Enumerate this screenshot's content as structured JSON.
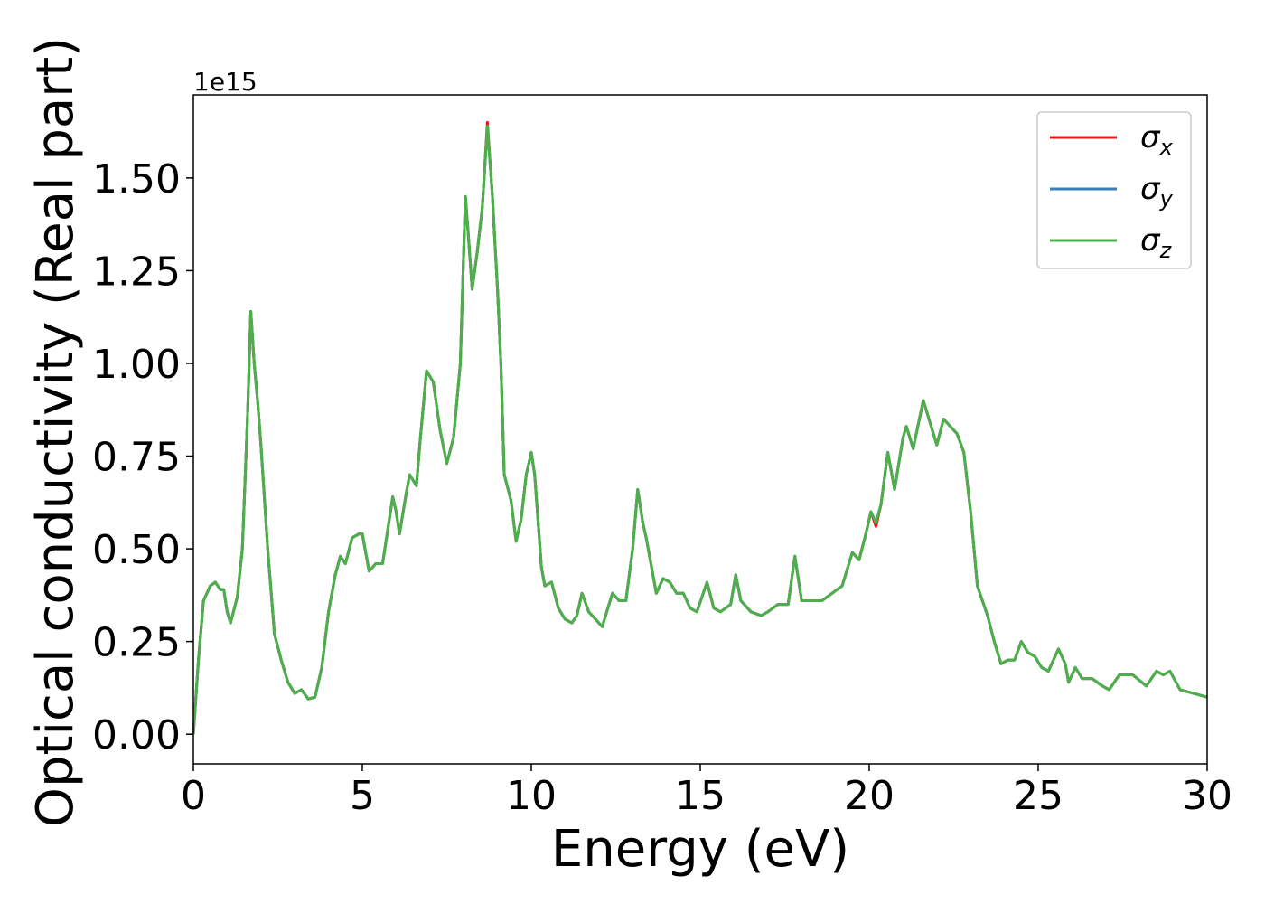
{
  "chart_data": {
    "type": "line",
    "xlabel": "Energy (eV)",
    "ylabel": "Optical conductivity (Real part)",
    "y_offset_label": "1e15",
    "xlim": [
      0,
      30
    ],
    "ylim": [
      -0.08,
      1.724
    ],
    "xticks": [
      0,
      5,
      10,
      15,
      20,
      25,
      30
    ],
    "yticks": [
      {
        "value": 0,
        "label": "0.00"
      },
      {
        "value": 0.25,
        "label": "0.25"
      },
      {
        "value": 0.5,
        "label": "0.50"
      },
      {
        "value": 0.75,
        "label": "0.75"
      },
      {
        "value": 1.0,
        "label": "1.00"
      },
      {
        "value": 1.25,
        "label": "1.25"
      },
      {
        "value": 1.5,
        "label": "1.50"
      }
    ],
    "legend": "upper right",
    "x": [
      0,
      0.15,
      0.3,
      0.5,
      0.65,
      0.8,
      0.9,
      1.0,
      1.1,
      1.3,
      1.45,
      1.6,
      1.7,
      1.8,
      1.9,
      2.0,
      2.2,
      2.4,
      2.6,
      2.8,
      3.0,
      3.2,
      3.4,
      3.6,
      3.8,
      4.0,
      4.2,
      4.35,
      4.5,
      4.7,
      4.9,
      5.0,
      5.2,
      5.4,
      5.6,
      5.8,
      5.9,
      6.0,
      6.1,
      6.3,
      6.4,
      6.6,
      6.7,
      6.9,
      7.1,
      7.3,
      7.5,
      7.7,
      7.9,
      8.05,
      8.15,
      8.25,
      8.4,
      8.55,
      8.7,
      8.85,
      9.0,
      9.1,
      9.2,
      9.4,
      9.55,
      9.7,
      9.85,
      10.0,
      10.1,
      10.3,
      10.4,
      10.6,
      10.8,
      11.0,
      11.2,
      11.35,
      11.5,
      11.7,
      11.9,
      12.1,
      12.4,
      12.6,
      12.8,
      13.0,
      13.15,
      13.3,
      13.4,
      13.7,
      13.9,
      14.1,
      14.3,
      14.5,
      14.7,
      14.9,
      15.2,
      15.4,
      15.6,
      15.9,
      16.05,
      16.2,
      16.5,
      16.8,
      17.0,
      17.3,
      17.6,
      17.8,
      18.0,
      18.3,
      18.6,
      18.9,
      19.2,
      19.5,
      19.7,
      19.9,
      20.05,
      20.2,
      20.35,
      20.55,
      20.75,
      21.0,
      21.1,
      21.3,
      21.6,
      21.8,
      22.0,
      22.2,
      22.4,
      22.6,
      22.8,
      23.0,
      23.2,
      23.5,
      23.7,
      23.9,
      24.1,
      24.3,
      24.5,
      24.7,
      24.9,
      25.1,
      25.3,
      25.6,
      25.8,
      25.9,
      26.1,
      26.3,
      26.6,
      26.9,
      27.1,
      27.4,
      27.8,
      28.2,
      28.5,
      28.7,
      28.9,
      29.2,
      29.6,
      30
    ],
    "series": [
      {
        "name": "σx",
        "color": "#e41a1c",
        "values": [
          0,
          0.2,
          0.36,
          0.4,
          0.41,
          0.39,
          0.39,
          0.33,
          0.3,
          0.37,
          0.5,
          0.85,
          1.14,
          1.0,
          0.9,
          0.78,
          0.5,
          0.27,
          0.2,
          0.14,
          0.11,
          0.12,
          0.095,
          0.1,
          0.18,
          0.33,
          0.43,
          0.48,
          0.46,
          0.53,
          0.54,
          0.54,
          0.44,
          0.46,
          0.46,
          0.58,
          0.64,
          0.6,
          0.54,
          0.65,
          0.7,
          0.67,
          0.78,
          0.98,
          0.95,
          0.82,
          0.73,
          0.8,
          1.0,
          1.45,
          1.33,
          1.2,
          1.3,
          1.42,
          1.65,
          1.45,
          1.2,
          1.0,
          0.7,
          0.63,
          0.52,
          0.58,
          0.7,
          0.76,
          0.7,
          0.45,
          0.4,
          0.41,
          0.34,
          0.31,
          0.3,
          0.32,
          0.38,
          0.33,
          0.31,
          0.29,
          0.38,
          0.36,
          0.36,
          0.5,
          0.66,
          0.57,
          0.53,
          0.38,
          0.42,
          0.41,
          0.38,
          0.38,
          0.34,
          0.33,
          0.41,
          0.34,
          0.33,
          0.35,
          0.43,
          0.36,
          0.33,
          0.32,
          0.33,
          0.35,
          0.35,
          0.48,
          0.36,
          0.36,
          0.36,
          0.38,
          0.4,
          0.49,
          0.47,
          0.54,
          0.6,
          0.56,
          0.62,
          0.76,
          0.66,
          0.8,
          0.83,
          0.77,
          0.9,
          0.84,
          0.78,
          0.85,
          0.83,
          0.81,
          0.76,
          0.6,
          0.4,
          0.32,
          0.25,
          0.19,
          0.2,
          0.2,
          0.25,
          0.22,
          0.21,
          0.18,
          0.17,
          0.23,
          0.19,
          0.14,
          0.18,
          0.15,
          0.15,
          0.13,
          0.12,
          0.16,
          0.16,
          0.13,
          0.17,
          0.16,
          0.17,
          0.12,
          0.11,
          0.1
        ]
      },
      {
        "name": "σy",
        "color": "#377eb8",
        "values": [
          0,
          0.2,
          0.36,
          0.4,
          0.41,
          0.39,
          0.39,
          0.33,
          0.3,
          0.37,
          0.5,
          0.85,
          1.14,
          1.0,
          0.9,
          0.78,
          0.5,
          0.27,
          0.2,
          0.14,
          0.11,
          0.12,
          0.095,
          0.1,
          0.18,
          0.33,
          0.43,
          0.48,
          0.46,
          0.53,
          0.54,
          0.54,
          0.44,
          0.46,
          0.46,
          0.58,
          0.64,
          0.6,
          0.54,
          0.65,
          0.7,
          0.67,
          0.78,
          0.98,
          0.95,
          0.82,
          0.73,
          0.8,
          1.0,
          1.45,
          1.33,
          1.2,
          1.3,
          1.42,
          1.64,
          1.45,
          1.2,
          1.0,
          0.7,
          0.63,
          0.52,
          0.58,
          0.7,
          0.76,
          0.7,
          0.45,
          0.4,
          0.41,
          0.34,
          0.31,
          0.3,
          0.32,
          0.38,
          0.33,
          0.31,
          0.29,
          0.38,
          0.36,
          0.36,
          0.5,
          0.66,
          0.57,
          0.53,
          0.38,
          0.42,
          0.41,
          0.38,
          0.38,
          0.34,
          0.33,
          0.41,
          0.34,
          0.33,
          0.35,
          0.43,
          0.36,
          0.33,
          0.32,
          0.33,
          0.35,
          0.35,
          0.48,
          0.36,
          0.36,
          0.36,
          0.38,
          0.4,
          0.49,
          0.47,
          0.54,
          0.6,
          0.57,
          0.62,
          0.76,
          0.66,
          0.8,
          0.83,
          0.77,
          0.9,
          0.84,
          0.78,
          0.85,
          0.83,
          0.81,
          0.76,
          0.6,
          0.4,
          0.32,
          0.25,
          0.19,
          0.2,
          0.2,
          0.25,
          0.22,
          0.21,
          0.18,
          0.17,
          0.23,
          0.19,
          0.14,
          0.18,
          0.15,
          0.15,
          0.13,
          0.12,
          0.16,
          0.16,
          0.13,
          0.17,
          0.16,
          0.17,
          0.12,
          0.11,
          0.1
        ]
      },
      {
        "name": "σz",
        "color": "#4daf4a",
        "values": [
          0,
          0.2,
          0.36,
          0.4,
          0.41,
          0.39,
          0.39,
          0.33,
          0.3,
          0.37,
          0.5,
          0.85,
          1.14,
          1.0,
          0.9,
          0.78,
          0.5,
          0.27,
          0.2,
          0.14,
          0.11,
          0.12,
          0.095,
          0.1,
          0.18,
          0.33,
          0.43,
          0.48,
          0.46,
          0.53,
          0.54,
          0.54,
          0.44,
          0.46,
          0.46,
          0.58,
          0.64,
          0.6,
          0.54,
          0.65,
          0.7,
          0.67,
          0.78,
          0.98,
          0.95,
          0.82,
          0.73,
          0.8,
          1.0,
          1.45,
          1.33,
          1.2,
          1.3,
          1.42,
          1.64,
          1.45,
          1.2,
          1.0,
          0.7,
          0.63,
          0.52,
          0.58,
          0.7,
          0.76,
          0.7,
          0.45,
          0.4,
          0.41,
          0.34,
          0.31,
          0.3,
          0.32,
          0.38,
          0.33,
          0.31,
          0.29,
          0.38,
          0.36,
          0.36,
          0.5,
          0.66,
          0.57,
          0.53,
          0.38,
          0.42,
          0.41,
          0.38,
          0.38,
          0.34,
          0.33,
          0.41,
          0.34,
          0.33,
          0.35,
          0.43,
          0.36,
          0.33,
          0.32,
          0.33,
          0.35,
          0.35,
          0.48,
          0.36,
          0.36,
          0.36,
          0.38,
          0.4,
          0.49,
          0.47,
          0.54,
          0.6,
          0.57,
          0.62,
          0.76,
          0.66,
          0.8,
          0.83,
          0.77,
          0.9,
          0.84,
          0.78,
          0.85,
          0.83,
          0.81,
          0.76,
          0.6,
          0.4,
          0.32,
          0.25,
          0.19,
          0.2,
          0.2,
          0.25,
          0.22,
          0.21,
          0.18,
          0.17,
          0.23,
          0.19,
          0.14,
          0.18,
          0.15,
          0.15,
          0.13,
          0.12,
          0.16,
          0.16,
          0.13,
          0.17,
          0.16,
          0.17,
          0.12,
          0.11,
          0.1
        ]
      }
    ]
  }
}
